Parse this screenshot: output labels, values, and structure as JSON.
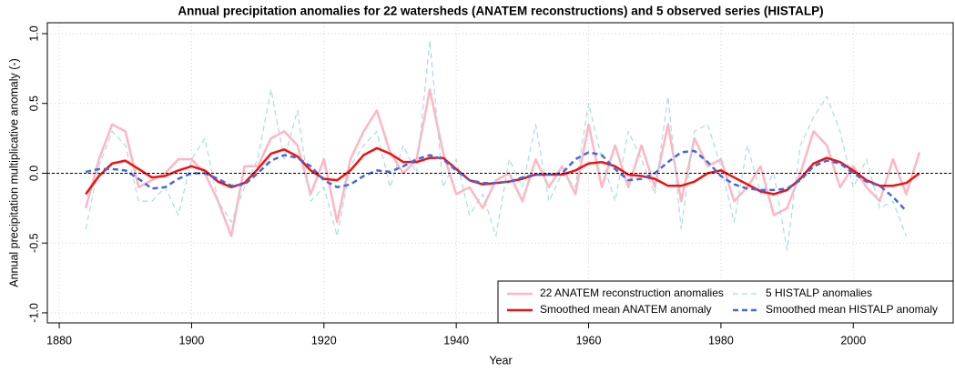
{
  "chart_data": {
    "type": "line",
    "title": "Annual precipitation anomalies for 22 watersheds (ANATEM reconstructions) and 5 observed series (HISTALP)",
    "x_label": "Year",
    "y_label": "Annual precipitation multiplicative anomaly (-)",
    "x": [
      1884,
      1886,
      1888,
      1890,
      1892,
      1894,
      1896,
      1898,
      1900,
      1902,
      1904,
      1906,
      1908,
      1910,
      1912,
      1914,
      1916,
      1918,
      1920,
      1922,
      1924,
      1926,
      1928,
      1930,
      1932,
      1934,
      1936,
      1938,
      1940,
      1942,
      1944,
      1946,
      1948,
      1950,
      1952,
      1954,
      1956,
      1958,
      1960,
      1962,
      1964,
      1966,
      1968,
      1970,
      1972,
      1974,
      1976,
      1978,
      1980,
      1982,
      1984,
      1986,
      1988,
      1990,
      1992,
      1994,
      1996,
      1998,
      2000,
      2002,
      2004,
      2006,
      2008,
      2010
    ],
    "series": [
      {
        "name": "22 ANATEM reconstruction anomalies",
        "color": "#ffb6c1",
        "dash": false,
        "width": 2.5,
        "values": [
          -0.25,
          0.1,
          0.35,
          0.3,
          -0.1,
          -0.05,
          0.0,
          0.1,
          0.1,
          0.0,
          -0.2,
          -0.45,
          0.05,
          0.05,
          0.25,
          0.3,
          0.2,
          -0.15,
          0.1,
          -0.35,
          0.1,
          0.3,
          0.45,
          0.15,
          0.0,
          0.1,
          0.6,
          0.15,
          -0.15,
          -0.1,
          -0.25,
          -0.05,
          0.0,
          -0.2,
          0.1,
          -0.1,
          0.05,
          -0.15,
          0.35,
          -0.1,
          0.2,
          -0.1,
          0.2,
          -0.1,
          0.35,
          -0.2,
          0.25,
          0.05,
          0.1,
          -0.2,
          -0.1,
          0.05,
          -0.3,
          -0.25,
          0.0,
          0.3,
          0.2,
          -0.1,
          0.05,
          -0.1,
          -0.2,
          0.1,
          -0.15,
          0.15
        ]
      },
      {
        "name": "5 HISTALP anomalies",
        "color": "#a8dce3",
        "dash": true,
        "width": 1.2,
        "values": [
          -0.4,
          0.05,
          0.3,
          0.2,
          -0.2,
          -0.2,
          -0.1,
          -0.3,
          0.1,
          0.25,
          -0.2,
          -0.35,
          -0.1,
          0.1,
          0.6,
          0.1,
          0.45,
          -0.2,
          -0.1,
          -0.45,
          0.05,
          0.2,
          0.3,
          -0.1,
          0.2,
          0.0,
          0.95,
          -0.1,
          0.1,
          -0.3,
          -0.15,
          -0.45,
          0.1,
          -0.1,
          0.35,
          -0.2,
          0.0,
          -0.1,
          0.5,
          0.1,
          -0.2,
          0.3,
          0.1,
          -0.15,
          0.55,
          -0.4,
          0.3,
          0.35,
          0.05,
          -0.35,
          0.2,
          -0.15,
          0.0,
          -0.55,
          0.2,
          0.4,
          0.55,
          0.3,
          -0.1,
          0.1,
          -0.25,
          -0.2,
          -0.45,
          null
        ]
      },
      {
        "name": "Smoothed mean ANATEM anomaly",
        "color": "#ee1111",
        "dash": false,
        "width": 2.5,
        "values": [
          -0.15,
          -0.02,
          0.07,
          0.09,
          0.03,
          -0.03,
          -0.02,
          0.02,
          0.05,
          0.02,
          -0.06,
          -0.1,
          -0.07,
          0.03,
          0.14,
          0.17,
          0.12,
          0.02,
          -0.04,
          -0.05,
          0.02,
          0.13,
          0.18,
          0.14,
          0.08,
          0.08,
          0.11,
          0.11,
          0.03,
          -0.05,
          -0.08,
          -0.07,
          -0.06,
          -0.04,
          -0.01,
          -0.01,
          -0.01,
          0.02,
          0.07,
          0.08,
          0.05,
          -0.01,
          -0.02,
          -0.04,
          -0.09,
          -0.09,
          -0.06,
          0.0,
          0.02,
          -0.03,
          -0.08,
          -0.13,
          -0.15,
          -0.12,
          -0.04,
          0.07,
          0.11,
          0.08,
          0.02,
          -0.05,
          -0.09,
          -0.09,
          -0.07,
          0.0
        ]
      },
      {
        "name": "Smoothed mean HISTALP anomaly",
        "color": "#4169e1",
        "dash": true,
        "width": 2.5,
        "values": [
          0.01,
          0.03,
          0.03,
          0.02,
          -0.04,
          -0.11,
          -0.1,
          -0.04,
          0.0,
          0.0,
          -0.04,
          -0.09,
          -0.08,
          0.0,
          0.09,
          0.13,
          0.11,
          0.05,
          -0.05,
          -0.1,
          -0.08,
          -0.02,
          0.02,
          0.01,
          0.05,
          0.1,
          0.13,
          0.1,
          0.02,
          -0.05,
          -0.07,
          -0.07,
          -0.06,
          -0.03,
          -0.01,
          -0.01,
          0.0,
          0.1,
          0.15,
          0.13,
          0.03,
          -0.05,
          -0.04,
          0.0,
          0.08,
          0.15,
          0.16,
          0.08,
          -0.02,
          -0.08,
          -0.11,
          -0.12,
          -0.12,
          -0.11,
          -0.05,
          0.05,
          0.09,
          0.07,
          0.0,
          -0.06,
          -0.09,
          -0.17,
          -0.27,
          null
        ]
      }
    ],
    "legend_order": [
      0,
      2,
      1,
      3
    ],
    "xlim": [
      1878.2,
      2015.1
    ],
    "xticks": [
      1880,
      1900,
      1920,
      1940,
      1960,
      1980,
      2000
    ],
    "ylim": [
      -1.072,
      1.078
    ],
    "yticks": [
      {
        "value": -1,
        "label": "-1.0"
      },
      {
        "value": -0.5,
        "label": "-0.5"
      },
      {
        "value": 0,
        "label": "0.0"
      },
      {
        "value": 0.5,
        "label": "0.5"
      },
      {
        "value": 1,
        "label": "1.0"
      }
    ],
    "reference_line": 0,
    "grid": true,
    "legend": "bottomright"
  }
}
